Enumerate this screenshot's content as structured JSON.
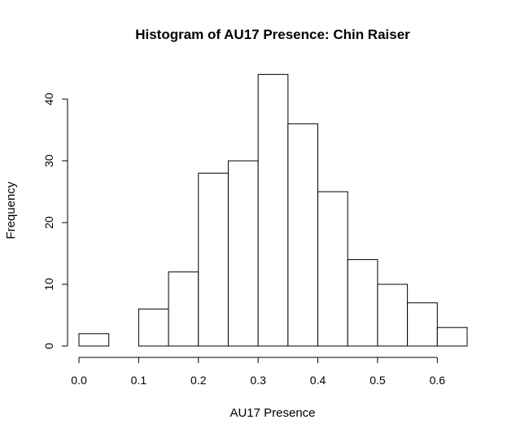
{
  "chart_data": {
    "type": "bar",
    "title": "Histogram of AU17 Presence: Chin Raiser",
    "xlabel": "AU17 Presence",
    "ylabel": "Frequency",
    "bin_edges": [
      0.0,
      0.05,
      0.1,
      0.15,
      0.2,
      0.25,
      0.3,
      0.35,
      0.4,
      0.45,
      0.5,
      0.55,
      0.6,
      0.65
    ],
    "values": [
      2,
      0,
      6,
      12,
      28,
      30,
      44,
      36,
      25,
      14,
      10,
      7,
      3
    ],
    "xlim": [
      0.0,
      0.65
    ],
    "ylim": [
      0,
      44
    ],
    "x_ticks": [
      0.0,
      0.1,
      0.2,
      0.3,
      0.4,
      0.5,
      0.6
    ],
    "x_tick_labels": [
      "0.0",
      "0.1",
      "0.2",
      "0.3",
      "0.4",
      "0.5",
      "0.6"
    ],
    "y_ticks": [
      0,
      10,
      20,
      30,
      40
    ],
    "y_tick_labels": [
      "0",
      "10",
      "20",
      "30",
      "40"
    ],
    "bar_fill": "#ffffff",
    "bar_stroke": "#000000",
    "grid": false,
    "legend": "none"
  }
}
